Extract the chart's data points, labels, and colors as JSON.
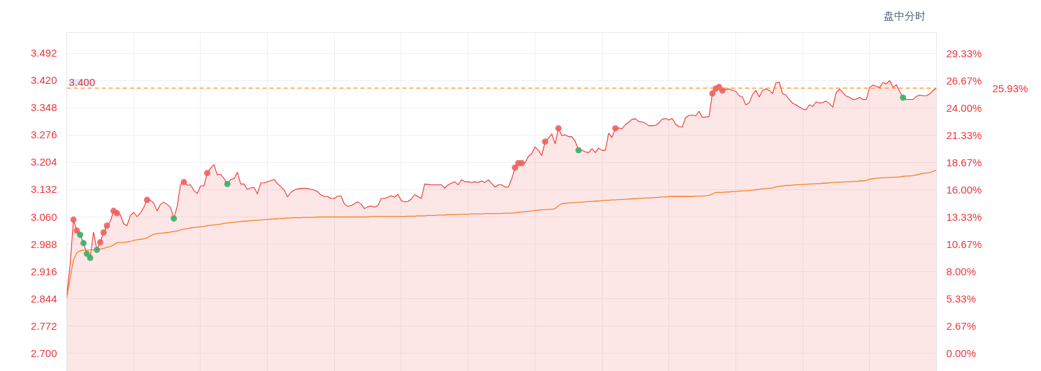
{
  "chart_data": {
    "type": "area",
    "categories": [
      null,
      null,
      null,
      null,
      null,
      null,
      null,
      null,
      null,
      null,
      null,
      null,
      null,
      null,
      null,
      null,
      null,
      null,
      null,
      null,
      null,
      null,
      null,
      null,
      null,
      null,
      null,
      null,
      null,
      null,
      null,
      null,
      null,
      null,
      null,
      null,
      null,
      null,
      null,
      null,
      null,
      null,
      null,
      null,
      null,
      null,
      null,
      null,
      null,
      null,
      null,
      null,
      null,
      null,
      null,
      null,
      null,
      null,
      null,
      null,
      null,
      null,
      null,
      null,
      null,
      null,
      null,
      null,
      null,
      null,
      null,
      null,
      null,
      null,
      null,
      null,
      null,
      null,
      null,
      null,
      null,
      null,
      null,
      null,
      null,
      null,
      null,
      null,
      null,
      null,
      null,
      null,
      null,
      null,
      null,
      null,
      null,
      null,
      null,
      null,
      null,
      null,
      null,
      null,
      null,
      null,
      null,
      null,
      null,
      null,
      null,
      null,
      null,
      null,
      null,
      null,
      null,
      null,
      null,
      null,
      null,
      null,
      null,
      null,
      null,
      null,
      null,
      null,
      null,
      null,
      null,
      null,
      null,
      null,
      null,
      null,
      null,
      null,
      null,
      null,
      null,
      null,
      null,
      null,
      null,
      null,
      null,
      null,
      null,
      null,
      null,
      null,
      null,
      null,
      null,
      null,
      null,
      null,
      null,
      null,
      null,
      null,
      null,
      null,
      null,
      null,
      null,
      null,
      null,
      null,
      null,
      null,
      null,
      null,
      null,
      null,
      null,
      null,
      null,
      null,
      null,
      null,
      null,
      null,
      null,
      null,
      null,
      null,
      null,
      null,
      null,
      null,
      null,
      null,
      null,
      null,
      null,
      null,
      null,
      null,
      null,
      null,
      null,
      null,
      null,
      null,
      null,
      null,
      null,
      null,
      null,
      null,
      null,
      null,
      null,
      null,
      null,
      null,
      null,
      null,
      null,
      null,
      null,
      null,
      null,
      null,
      null,
      null,
      null,
      null,
      null,
      null,
      null,
      null,
      null,
      null,
      null,
      null,
      null,
      null,
      null,
      null,
      null,
      null,
      null,
      null,
      null,
      null,
      null,
      null,
      null,
      null,
      null,
      null,
      null,
      null,
      null,
      null,
      null,
      null,
      null
    ],
    "series": [
      {
        "color": "#ee3333",
        "values": [
          2.854,
          2.933,
          3.053,
          3.024,
          3.013,
          2.991,
          2.963,
          2.952,
          3.02,
          2.973,
          2.993,
          3.019,
          3.037,
          3.048,
          3.076,
          3.07,
          3.066,
          3.042,
          3.037,
          3.064,
          3.072,
          3.061,
          3.07,
          3.085,
          3.105,
          3.104,
          3.097,
          3.076,
          3.093,
          3.099,
          3.093,
          3.086,
          3.056,
          3.088,
          3.145,
          3.152,
          3.144,
          3.145,
          3.13,
          3.122,
          3.142,
          3.142,
          3.176,
          3.189,
          3.198,
          3.171,
          3.173,
          3.162,
          3.147,
          3.159,
          3.161,
          3.178,
          3.147,
          3.147,
          3.133,
          3.137,
          3.138,
          3.121,
          3.15,
          3.15,
          3.153,
          3.156,
          3.159,
          3.148,
          3.14,
          3.131,
          3.113,
          3.125,
          3.131,
          3.134,
          3.135,
          3.136,
          3.135,
          3.133,
          3.131,
          3.127,
          3.118,
          3.114,
          3.114,
          3.109,
          3.109,
          3.115,
          3.115,
          3.094,
          3.088,
          3.09,
          3.095,
          3.1,
          3.094,
          3.082,
          3.087,
          3.089,
          3.086,
          3.09,
          3.109,
          3.109,
          3.112,
          3.116,
          3.112,
          3.12,
          3.103,
          3.1,
          3.101,
          3.107,
          3.119,
          3.114,
          3.109,
          3.147,
          3.146,
          3.145,
          3.145,
          3.145,
          3.145,
          3.136,
          3.145,
          3.149,
          3.153,
          3.145,
          3.158,
          3.153,
          3.153,
          3.151,
          3.153,
          3.151,
          3.155,
          3.151,
          3.158,
          3.149,
          3.139,
          3.145,
          3.145,
          3.139,
          3.139,
          3.16,
          3.19,
          3.202,
          3.202,
          3.203,
          3.22,
          3.227,
          3.245,
          3.236,
          3.222,
          3.259,
          3.268,
          3.279,
          3.253,
          3.294,
          3.275,
          3.277,
          3.272,
          3.272,
          3.26,
          3.236,
          3.236,
          3.232,
          3.23,
          3.24,
          3.23,
          3.242,
          3.236,
          3.236,
          3.281,
          3.27,
          3.294,
          3.295,
          3.293,
          3.304,
          3.31,
          3.318,
          3.319,
          3.312,
          3.311,
          3.307,
          3.301,
          3.301,
          3.302,
          3.308,
          3.318,
          3.32,
          3.316,
          3.32,
          3.305,
          3.298,
          3.297,
          3.322,
          3.328,
          3.329,
          3.327,
          3.339,
          3.323,
          3.324,
          3.325,
          3.386,
          3.399,
          3.403,
          3.394,
          3.396,
          3.398,
          3.394,
          3.392,
          3.38,
          3.377,
          3.356,
          3.361,
          3.383,
          3.394,
          3.377,
          3.394,
          3.398,
          3.394,
          3.386,
          3.414,
          3.416,
          3.385,
          3.382,
          3.37,
          3.36,
          3.356,
          3.35,
          3.345,
          3.343,
          3.356,
          3.352,
          3.364,
          3.361,
          3.362,
          3.366,
          3.359,
          3.35,
          3.388,
          3.398,
          3.389,
          3.379,
          3.376,
          3.37,
          3.371,
          3.376,
          3.37,
          3.37,
          3.402,
          3.408,
          3.405,
          3.402,
          3.415,
          3.411,
          3.42,
          3.402,
          3.409,
          3.391,
          3.375,
          3.37,
          3.37,
          3.37,
          3.378,
          3.382,
          3.38,
          3.38,
          3.385,
          3.394,
          3.4
        ]
      },
      {
        "type": "line",
        "color": "#f5822a",
        "values": [
          2.846,
          2.898,
          2.946,
          2.965,
          2.971,
          2.972,
          2.972,
          2.973,
          2.973,
          2.974,
          2.975,
          2.977,
          2.98,
          2.982,
          2.986,
          2.992,
          2.993,
          2.993,
          2.994,
          2.995,
          2.998,
          3.0,
          3.001,
          3.002,
          3.005,
          3.01,
          3.014,
          3.016,
          3.017,
          3.018,
          3.019,
          3.02,
          3.022,
          3.023,
          3.026,
          3.028,
          3.029,
          3.031,
          3.032,
          3.033,
          3.034,
          3.035,
          3.037,
          3.038,
          3.039,
          3.04,
          3.041,
          3.043,
          3.044,
          3.045,
          3.046,
          3.047,
          3.048,
          3.049,
          3.049,
          3.05,
          3.051,
          3.051,
          3.052,
          3.053,
          3.053,
          3.054,
          3.055,
          3.055,
          3.056,
          3.056,
          3.057,
          3.057,
          3.058,
          3.058,
          3.058,
          3.059,
          3.059,
          3.059,
          3.059,
          3.06,
          3.06,
          3.06,
          3.06,
          3.06,
          3.06,
          3.06,
          3.06,
          3.06,
          3.06,
          3.06,
          3.06,
          3.06,
          3.06,
          3.06,
          3.06,
          3.061,
          3.061,
          3.061,
          3.061,
          3.061,
          3.061,
          3.061,
          3.061,
          3.061,
          3.061,
          3.061,
          3.062,
          3.062,
          3.062,
          3.063,
          3.063,
          3.063,
          3.064,
          3.064,
          3.064,
          3.065,
          3.065,
          3.065,
          3.066,
          3.066,
          3.066,
          3.067,
          3.067,
          3.067,
          3.067,
          3.068,
          3.068,
          3.068,
          3.068,
          3.069,
          3.069,
          3.069,
          3.069,
          3.069,
          3.069,
          3.07,
          3.07,
          3.07,
          3.071,
          3.072,
          3.073,
          3.074,
          3.075,
          3.076,
          3.077,
          3.078,
          3.079,
          3.079,
          3.08,
          3.08,
          3.082,
          3.09,
          3.095,
          3.096,
          3.097,
          3.097,
          3.098,
          3.099,
          3.099,
          3.1,
          3.101,
          3.101,
          3.102,
          3.102,
          3.103,
          3.104,
          3.104,
          3.105,
          3.105,
          3.106,
          3.106,
          3.107,
          3.107,
          3.108,
          3.108,
          3.109,
          3.109,
          3.11,
          3.11,
          3.111,
          3.111,
          3.112,
          3.113,
          3.113,
          3.114,
          3.114,
          3.114,
          3.114,
          3.114,
          3.114,
          3.114,
          3.114,
          3.115,
          3.115,
          3.115,
          3.116,
          3.117,
          3.12,
          3.125,
          3.125,
          3.125,
          3.126,
          3.126,
          3.127,
          3.127,
          3.128,
          3.129,
          3.129,
          3.13,
          3.131,
          3.132,
          3.133,
          3.134,
          3.135,
          3.136,
          3.137,
          3.139,
          3.141,
          3.142,
          3.143,
          3.143,
          3.144,
          3.145,
          3.145,
          3.146,
          3.146,
          3.147,
          3.147,
          3.148,
          3.148,
          3.149,
          3.149,
          3.15,
          3.151,
          3.151,
          3.152,
          3.152,
          3.153,
          3.153,
          3.154,
          3.154,
          3.155,
          3.155,
          3.156,
          3.16,
          3.161,
          3.162,
          3.163,
          3.163,
          3.164,
          3.164,
          3.165,
          3.165,
          3.166,
          3.167,
          3.168,
          3.168,
          3.169,
          3.171,
          3.173,
          3.175,
          3.176,
          3.177,
          3.18,
          3.184
        ]
      },
      {
        "type": "scatter",
        "color": "#ef5f5f",
        "marker": "circle",
        "values": [
          null,
          null,
          3.053,
          3.024,
          null,
          null,
          null,
          null,
          null,
          null,
          2.993,
          3.019,
          3.037,
          null,
          3.076,
          3.07,
          null,
          null,
          null,
          null,
          null,
          null,
          null,
          null,
          3.105,
          null,
          null,
          null,
          null,
          null,
          null,
          null,
          null,
          null,
          null,
          3.152,
          null,
          null,
          null,
          null,
          null,
          null,
          3.176,
          null,
          null,
          null,
          null,
          null,
          null,
          null,
          null,
          null,
          null,
          null,
          null,
          null,
          null,
          null,
          null,
          null,
          null,
          null,
          null,
          null,
          null,
          null,
          null,
          null,
          null,
          null,
          null,
          null,
          null,
          null,
          null,
          null,
          null,
          null,
          null,
          null,
          null,
          null,
          null,
          null,
          null,
          null,
          null,
          null,
          null,
          null,
          null,
          null,
          null,
          null,
          null,
          null,
          null,
          null,
          null,
          null,
          null,
          null,
          null,
          null,
          null,
          null,
          null,
          null,
          null,
          null,
          null,
          null,
          null,
          null,
          null,
          null,
          null,
          null,
          null,
          null,
          null,
          null,
          null,
          null,
          null,
          null,
          null,
          null,
          null,
          null,
          null,
          null,
          null,
          null,
          3.19,
          3.202,
          3.202,
          null,
          null,
          null,
          null,
          null,
          null,
          3.259,
          null,
          null,
          null,
          3.294,
          null,
          null,
          null,
          null,
          null,
          null,
          null,
          null,
          null,
          null,
          null,
          null,
          null,
          null,
          null,
          null,
          3.294,
          null,
          null,
          null,
          null,
          null,
          null,
          null,
          null,
          null,
          null,
          null,
          null,
          null,
          null,
          null,
          null,
          null,
          null,
          null,
          null,
          null,
          null,
          null,
          null,
          null,
          null,
          null,
          null,
          3.386,
          3.399,
          3.403,
          3.394,
          null,
          null,
          null,
          null,
          null,
          null,
          null,
          null,
          null,
          null,
          null,
          null,
          null,
          null,
          null,
          null,
          null,
          null,
          null,
          null,
          null,
          null,
          null,
          null,
          null,
          null,
          null,
          null,
          null,
          null,
          null,
          null,
          null,
          null,
          null,
          null,
          null,
          null,
          null,
          null,
          null,
          null,
          null,
          null,
          null,
          null,
          null,
          null,
          null,
          null,
          null,
          null,
          null,
          null,
          null,
          null,
          null,
          null,
          null,
          null,
          null,
          null,
          null,
          null
        ]
      },
      {
        "type": "scatter",
        "color": "#36b06a",
        "marker": "circle",
        "values": [
          null,
          null,
          null,
          null,
          3.013,
          2.991,
          2.963,
          2.952,
          null,
          2.973,
          null,
          null,
          null,
          null,
          null,
          null,
          null,
          null,
          null,
          null,
          null,
          null,
          null,
          null,
          null,
          null,
          null,
          null,
          null,
          null,
          null,
          null,
          3.056,
          null,
          null,
          null,
          null,
          null,
          null,
          null,
          null,
          null,
          null,
          null,
          null,
          null,
          null,
          null,
          3.147,
          null,
          null,
          null,
          null,
          null,
          null,
          null,
          null,
          null,
          null,
          null,
          null,
          null,
          null,
          null,
          null,
          null,
          null,
          null,
          null,
          null,
          null,
          null,
          null,
          null,
          null,
          null,
          null,
          null,
          null,
          null,
          null,
          null,
          null,
          null,
          null,
          null,
          null,
          null,
          null,
          null,
          null,
          null,
          null,
          null,
          null,
          null,
          null,
          null,
          null,
          null,
          null,
          null,
          null,
          null,
          null,
          null,
          null,
          null,
          null,
          null,
          null,
          null,
          null,
          null,
          null,
          null,
          null,
          null,
          null,
          null,
          null,
          null,
          null,
          null,
          null,
          null,
          null,
          null,
          null,
          null,
          null,
          null,
          null,
          null,
          null,
          null,
          null,
          null,
          null,
          null,
          null,
          null,
          null,
          null,
          null,
          null,
          null,
          null,
          null,
          null,
          null,
          null,
          null,
          3.236,
          null,
          null,
          null,
          null,
          null,
          null,
          null,
          null,
          null,
          null,
          null,
          null,
          null,
          null,
          null,
          null,
          null,
          null,
          null,
          null,
          null,
          null,
          null,
          null,
          null,
          null,
          null,
          null,
          null,
          null,
          null,
          null,
          null,
          null,
          null,
          null,
          null,
          null,
          null,
          null,
          null,
          null,
          null,
          null,
          null,
          null,
          null,
          null,
          null,
          null,
          null,
          null,
          null,
          null,
          null,
          null,
          null,
          null,
          null,
          null,
          null,
          null,
          null,
          null,
          null,
          null,
          null,
          null,
          null,
          null,
          null,
          null,
          null,
          null,
          null,
          null,
          null,
          null,
          null,
          null,
          null,
          null,
          null,
          null,
          null,
          null,
          null,
          null,
          null,
          null,
          null,
          null,
          null,
          null,
          null,
          null,
          3.375,
          null,
          null,
          null,
          null,
          null,
          null,
          null,
          null,
          null,
          null
        ]
      }
    ],
    "ylim": [
      2.645,
      3.547
    ],
    "yticks": [
      {
        "value": 2.7,
        "label": "2.700"
      },
      2.772,
      2.844,
      2.916,
      2.988,
      {
        "value": 3.06,
        "label": "3.060"
      },
      3.132,
      3.204,
      3.276,
      3.348,
      {
        "value": 3.42,
        "label": "3.420"
      },
      3.492
    ],
    "y2lim": [
      -2.04,
      31.37
    ],
    "y2ticks": [
      {
        "value": 0,
        "label": "0.00%"
      },
      {
        "value": 2.67,
        "label": "2.67%"
      },
      {
        "value": 5.33,
        "label": "5.33%"
      },
      {
        "value": 8,
        "label": "8.00%"
      },
      {
        "value": 10.67,
        "label": "10.67%"
      },
      {
        "value": 13.33,
        "label": "13.33%"
      },
      {
        "value": 16,
        "label": "16.00%"
      },
      {
        "value": 18.67,
        "label": "18.67%"
      },
      {
        "value": 21.33,
        "label": "21.33%"
      },
      {
        "value": 24,
        "label": "24.00%"
      },
      {
        "value": 26.67,
        "label": "26.67%"
      },
      {
        "value": 29.33,
        "label": "29.33%"
      }
    ],
    "ref_lines": [
      {
        "axis": "y",
        "value": 3.4,
        "label": "3.400",
        "color": "#ff8c1f",
        "line_style": "dashed"
      }
    ],
    "grid": true,
    "tick_labels": "y",
    "annotations": [
      "盘中分时",
      "25.93%"
    ]
  }
}
